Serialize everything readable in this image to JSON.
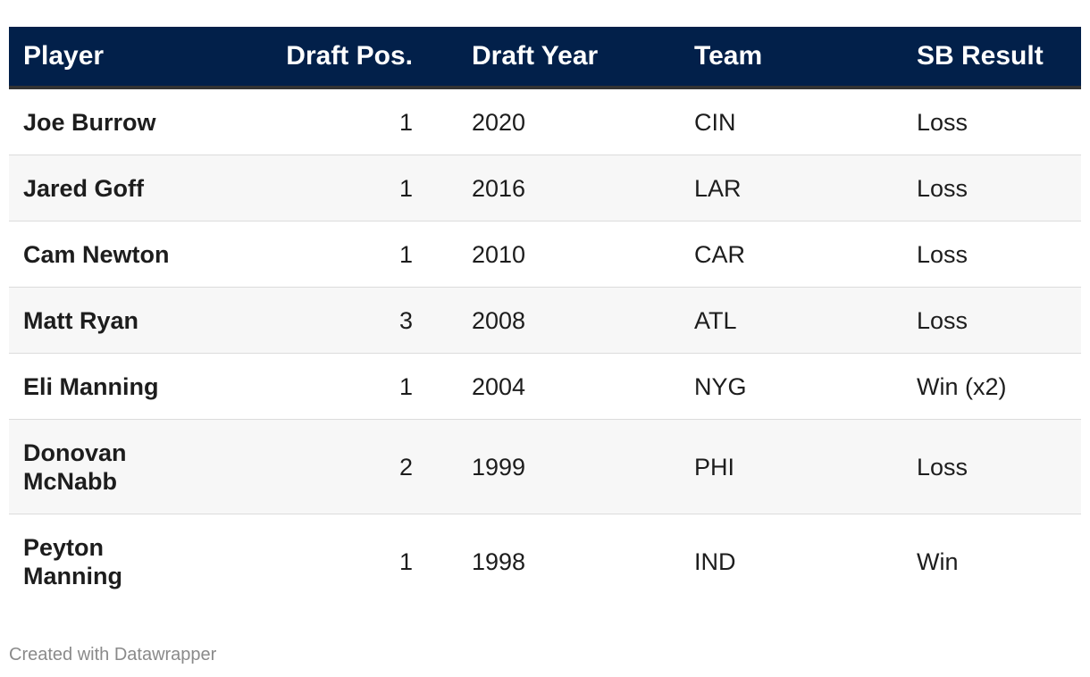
{
  "chart_data": {
    "type": "table",
    "columns": [
      "Player",
      "Draft Pos.",
      "Draft Year",
      "Team",
      "SB Result"
    ],
    "rows": [
      {
        "player": "Joe Burrow",
        "draft_pos": "1",
        "draft_year": "2020",
        "team": "CIN",
        "sb_result": "Loss"
      },
      {
        "player": "Jared Goff",
        "draft_pos": "1",
        "draft_year": "2016",
        "team": "LAR",
        "sb_result": "Loss"
      },
      {
        "player": "Cam Newton",
        "draft_pos": "1",
        "draft_year": "2010",
        "team": "CAR",
        "sb_result": "Loss"
      },
      {
        "player": "Matt Ryan",
        "draft_pos": "3",
        "draft_year": "2008",
        "team": "ATL",
        "sb_result": "Loss"
      },
      {
        "player": "Eli Manning",
        "draft_pos": "1",
        "draft_year": "2004",
        "team": "NYG",
        "sb_result": "Win (x2)"
      },
      {
        "player": "Donovan McNabb",
        "draft_pos": "2",
        "draft_year": "1999",
        "team": "PHI",
        "sb_result": "Loss"
      },
      {
        "player": "Peyton Manning",
        "draft_pos": "1",
        "draft_year": "1998",
        "team": "IND",
        "sb_result": "Win"
      }
    ]
  },
  "footer": {
    "credit": "Created with Datawrapper"
  },
  "colors": {
    "header_bg": "#02204a",
    "header_text": "#ffffff",
    "stripe": "#f7f7f7"
  }
}
